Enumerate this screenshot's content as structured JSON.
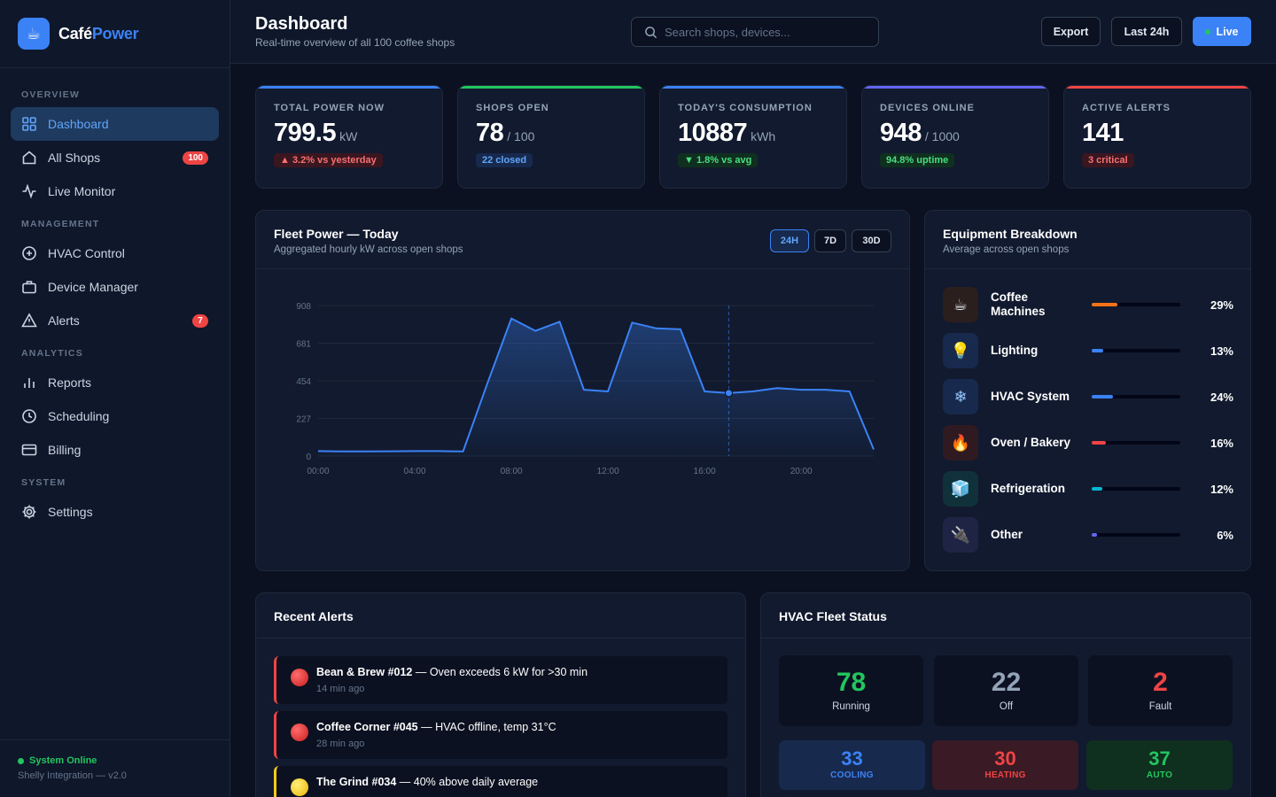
{
  "brand": {
    "name_main": "Café",
    "name_accent": "Power",
    "logo": "☕"
  },
  "sidebar": {
    "sections": [
      "OVERVIEW",
      "MANAGEMENT",
      "ANALYTICS",
      "SYSTEM"
    ],
    "items": [
      {
        "label": "Dashboard"
      },
      {
        "label": "All Shops",
        "badge": "100"
      },
      {
        "label": "Live Monitor"
      },
      {
        "label": "HVAC Control"
      },
      {
        "label": "Device Manager"
      },
      {
        "label": "Alerts",
        "badge": "7"
      },
      {
        "label": "Reports"
      },
      {
        "label": "Scheduling"
      },
      {
        "label": "Billing"
      },
      {
        "label": "Settings"
      }
    ],
    "status": "System Online",
    "integration": "Shelly Integration — v2.0"
  },
  "header": {
    "title": "Dashboard",
    "subtitle": "Real-time overview of all 100 coffee shops",
    "search_placeholder": "Search shops, devices...",
    "export_label": "Export",
    "range_label": "Last 24h",
    "live_label": "Live"
  },
  "kpis": [
    {
      "label": "TOTAL POWER NOW",
      "value": "799.5",
      "unit": "kW",
      "pill": "▲ 3.2% vs yesterday",
      "color": "#3b82f6"
    },
    {
      "label": "SHOPS OPEN",
      "value": "78",
      "unit": "/ 100",
      "pill": "22 closed",
      "color": "#22c55e"
    },
    {
      "label": "TODAY'S CONSUMPTION",
      "value": "10887",
      "unit": "kWh",
      "pill": "▼ 1.8% vs avg",
      "color": "#3b82f6"
    },
    {
      "label": "DEVICES ONLINE",
      "value": "948",
      "unit": "/ 1000",
      "pill": "94.8% uptime",
      "color": "#6366f1"
    },
    {
      "label": "ACTIVE ALERTS",
      "value": "141",
      "unit": "",
      "pill": "3 critical",
      "color": "#ef4444"
    }
  ],
  "fleet": {
    "title": "Fleet Power — Today",
    "subtitle": "Aggregated hourly kW across open shops",
    "ranges": [
      "24H",
      "7D",
      "30D"
    ]
  },
  "chart_data": {
    "type": "area",
    "x": [
      0,
      1,
      2,
      3,
      4,
      5,
      6,
      7,
      8,
      9,
      10,
      11,
      12,
      13,
      14,
      15,
      16,
      17,
      18,
      19,
      20,
      21,
      22,
      23
    ],
    "x_tick_labels": [
      "00:00",
      "04:00",
      "08:00",
      "12:00",
      "16:00",
      "20:00"
    ],
    "x_tick_positions": [
      0,
      4,
      8,
      12,
      16,
      20
    ],
    "y_ticks": [
      0,
      227,
      454,
      681,
      908
    ],
    "ylim": [
      0,
      908
    ],
    "values": [
      30,
      28,
      28,
      29,
      30,
      30,
      28,
      435,
      830,
      755,
      810,
      400,
      390,
      805,
      770,
      765,
      390,
      380,
      390,
      410,
      400,
      400,
      390,
      40
    ],
    "highlight_index": 17,
    "grid": true,
    "color": "#3b82f6"
  },
  "equipment": {
    "title": "Equipment Breakdown",
    "subtitle": "Average across open shops",
    "items": [
      {
        "name": "Coffee Machines",
        "pct": "29%",
        "value": 29,
        "icon": "☕",
        "color": "#f97316",
        "bg": "#2a1f1d"
      },
      {
        "name": "Lighting",
        "pct": "13%",
        "value": 13,
        "icon": "💡",
        "color": "#3b82f6",
        "bg": "#172a4d"
      },
      {
        "name": "HVAC System",
        "pct": "24%",
        "value": 24,
        "icon": "❄",
        "color": "#3b82f6",
        "bg": "#172a4d"
      },
      {
        "name": "Oven / Bakery",
        "pct": "16%",
        "value": 16,
        "icon": "🔥",
        "color": "#ef4444",
        "bg": "#2f1a22"
      },
      {
        "name": "Refrigeration",
        "pct": "12%",
        "value": 12,
        "icon": "🧊",
        "color": "#06b6d4",
        "bg": "#10303a"
      },
      {
        "name": "Other",
        "pct": "6%",
        "value": 6,
        "icon": "🔌",
        "color": "#6366f1",
        "bg": "#1f2445"
      }
    ]
  },
  "alerts": {
    "title": "Recent Alerts",
    "items": [
      {
        "shop": "Bean & Brew #012",
        "message": " — Oven exceeds 6 kW for >30 min",
        "time": "14 min ago",
        "color": "#ef4444"
      },
      {
        "shop": "Coffee Corner #045",
        "message": " — HVAC offline, temp 31°C",
        "time": "28 min ago",
        "color": "#ef4444"
      },
      {
        "shop": "The Grind #034",
        "message": " — 40% above daily average",
        "time": "",
        "color": "#facc15"
      }
    ]
  },
  "hvac": {
    "title": "HVAC Fleet Status",
    "running": {
      "value": "78",
      "label": "Running",
      "color": "#22c55e"
    },
    "off": {
      "value": "22",
      "label": "Off",
      "color": "#94a3b8"
    },
    "fault": {
      "value": "2",
      "label": "Fault",
      "color": "#ef4444"
    },
    "cooling": {
      "value": "33",
      "label": "COOLING",
      "color": "#3b82f6",
      "bg": "#172a4d"
    },
    "heating": {
      "value": "30",
      "label": "HEATING",
      "color": "#ef4444",
      "bg": "#3a1a24"
    },
    "auto": {
      "value": "37",
      "label": "AUTO",
      "color": "#22c55e",
      "bg": "#10301f"
    }
  }
}
